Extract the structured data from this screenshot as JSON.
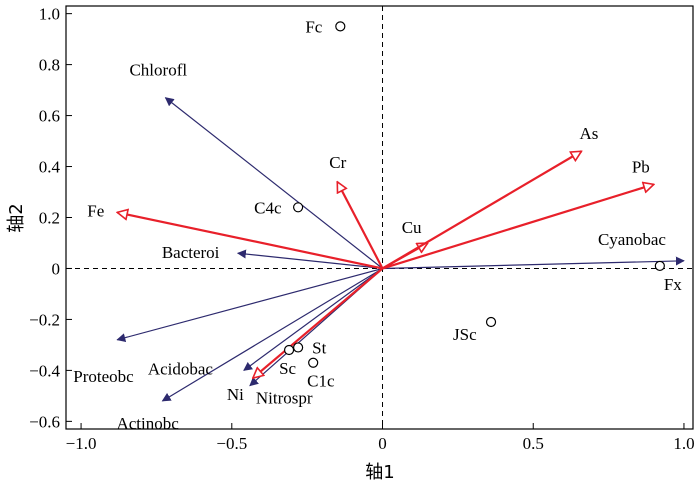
{
  "chart_data": {
    "type": "scatter",
    "subtype": "rda-biplot",
    "xlabel": "轴1",
    "ylabel": "轴2",
    "xlim": [
      -1.05,
      1.03
    ],
    "ylim": [
      -0.63,
      1.03
    ],
    "xticks": [
      -1.0,
      -0.5,
      0,
      0.5,
      1.0
    ],
    "xtick_labels": [
      "−1.0",
      "−0.5",
      "0",
      "0.5",
      "1.0"
    ],
    "yticks": [
      -0.6,
      -0.4,
      -0.2,
      0,
      0.2,
      0.4,
      0.6,
      0.8,
      1.0
    ],
    "ytick_labels": [
      "−0.6",
      "−0.4",
      "−0.2",
      "0",
      "0.2",
      "0.4",
      "0.6",
      "0.8",
      "1.0"
    ],
    "zero_lines": "dashed",
    "grid": false,
    "colors": {
      "environment": "#e8202a",
      "species": "#2d2a6e",
      "sites": "#000000"
    },
    "environment_vectors": [
      {
        "name": "Fe",
        "x": -0.88,
        "y": 0.22
      },
      {
        "name": "Cr",
        "x": -0.15,
        "y": 0.34
      },
      {
        "name": "Cu",
        "x": 0.15,
        "y": 0.1
      },
      {
        "name": "As",
        "x": 0.66,
        "y": 0.46
      },
      {
        "name": "Pb",
        "x": 0.9,
        "y": 0.33
      },
      {
        "name": "Ni",
        "x": -0.43,
        "y": -0.43
      }
    ],
    "species_vectors": [
      {
        "name": "Chlorofl",
        "x": -0.72,
        "y": 0.67
      },
      {
        "name": "Bacteroi",
        "x": -0.48,
        "y": 0.06
      },
      {
        "name": "Cyanobac",
        "x": 1.0,
        "y": 0.03
      },
      {
        "name": "Proteobc",
        "x": -0.88,
        "y": -0.28
      },
      {
        "name": "Acidobac",
        "x": -0.46,
        "y": -0.4
      },
      {
        "name": "Actinobc",
        "x": -0.73,
        "y": -0.52
      },
      {
        "name": "Nitrospr",
        "x": -0.44,
        "y": -0.46
      }
    ],
    "sites": [
      {
        "name": "Fc",
        "x": -0.14,
        "y": 0.95
      },
      {
        "name": "C4c",
        "x": -0.28,
        "y": 0.24
      },
      {
        "name": "Fx",
        "x": 0.92,
        "y": 0.01
      },
      {
        "name": "JSc",
        "x": 0.36,
        "y": -0.21
      },
      {
        "name": "St",
        "x": -0.28,
        "y": -0.31
      },
      {
        "name": "Sc",
        "x": -0.31,
        "y": -0.32
      },
      {
        "name": "C1c",
        "x": -0.23,
        "y": -0.37
      }
    ]
  }
}
